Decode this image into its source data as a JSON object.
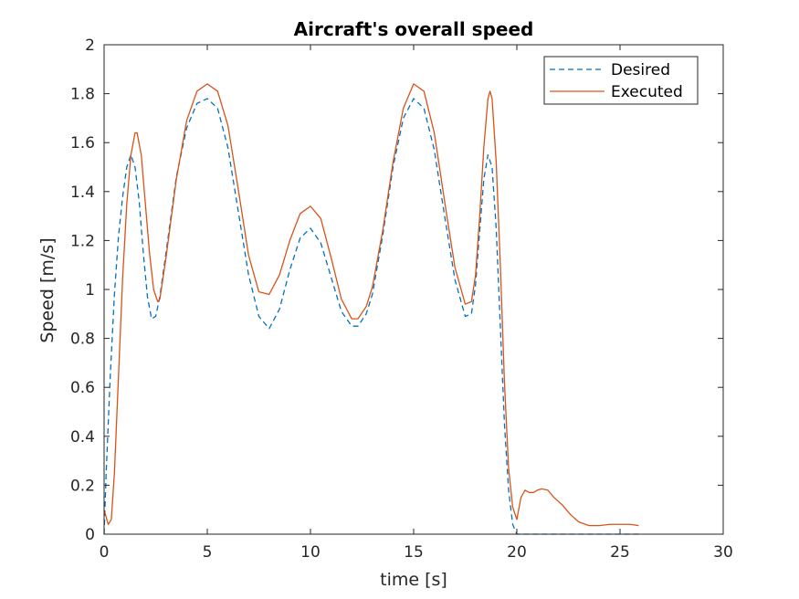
{
  "chart_data": {
    "type": "line",
    "title": "Aircraft's overall speed",
    "xlabel": "time [s]",
    "ylabel": "Speed [m/s]",
    "xlim": [
      0,
      30
    ],
    "ylim": [
      0,
      2
    ],
    "xticks": [
      "0",
      "5",
      "10",
      "15",
      "20",
      "25",
      "30"
    ],
    "yticks": [
      "0",
      "0.2",
      "0.4",
      "0.6",
      "0.8",
      "1",
      "1.2",
      "1.4",
      "1.6",
      "1.8",
      "2"
    ],
    "grid": false,
    "legend_position": "top-right",
    "series": [
      {
        "name": "Desired",
        "color": "#0072BD",
        "style": "dashed",
        "x": [
          0,
          0.1,
          0.3,
          0.5,
          0.7,
          0.9,
          1.1,
          1.3,
          1.5,
          1.7,
          1.9,
          2.1,
          2.3,
          2.5,
          2.7,
          3.0,
          3.5,
          4.0,
          4.5,
          5.0,
          5.5,
          6.0,
          6.5,
          7.0,
          7.5,
          8.0,
          8.5,
          9.0,
          9.5,
          10.0,
          10.5,
          11.0,
          11.5,
          12.0,
          12.3,
          12.7,
          13.0,
          13.5,
          14.0,
          14.5,
          15.0,
          15.5,
          16.0,
          16.5,
          17.0,
          17.5,
          17.8,
          18.0,
          18.2,
          18.4,
          18.6,
          18.8,
          19.0,
          19.2,
          19.4,
          19.6,
          19.8,
          20.0,
          20.2,
          21,
          22,
          23,
          24,
          25,
          26
        ],
        "y": [
          0.0,
          0.25,
          0.65,
          0.98,
          1.22,
          1.38,
          1.5,
          1.55,
          1.5,
          1.36,
          1.15,
          0.97,
          0.88,
          0.89,
          0.97,
          1.15,
          1.46,
          1.66,
          1.76,
          1.78,
          1.74,
          1.58,
          1.32,
          1.06,
          0.89,
          0.84,
          0.92,
          1.08,
          1.21,
          1.25,
          1.19,
          1.05,
          0.91,
          0.85,
          0.85,
          0.9,
          0.98,
          1.22,
          1.5,
          1.7,
          1.78,
          1.74,
          1.57,
          1.3,
          1.04,
          0.89,
          0.9,
          1.02,
          1.24,
          1.45,
          1.55,
          1.5,
          1.25,
          0.85,
          0.45,
          0.18,
          0.04,
          0.0,
          0.0,
          0.0,
          0.0,
          0.0,
          0.0,
          0.0,
          0.0
        ]
      },
      {
        "name": "Executed",
        "color": "#D95319",
        "style": "solid",
        "x": [
          0,
          0.1,
          0.2,
          0.35,
          0.5,
          0.7,
          0.9,
          1.1,
          1.3,
          1.5,
          1.6,
          1.8,
          2.0,
          2.2,
          2.4,
          2.6,
          2.7,
          3.0,
          3.5,
          4.0,
          4.5,
          5.0,
          5.5,
          6.0,
          6.5,
          7.0,
          7.5,
          8.0,
          8.5,
          9.0,
          9.5,
          10.0,
          10.5,
          11.0,
          11.5,
          12.0,
          12.3,
          12.7,
          13.0,
          13.5,
          14.0,
          14.5,
          15.0,
          15.5,
          16.0,
          16.5,
          17.0,
          17.5,
          17.8,
          18.0,
          18.2,
          18.4,
          18.6,
          18.7,
          18.8,
          19.0,
          19.2,
          19.4,
          19.6,
          19.8,
          20.0,
          20.2,
          20.4,
          20.6,
          20.8,
          21.0,
          21.2,
          21.5,
          21.8,
          22.2,
          22.6,
          23.0,
          23.5,
          24.0,
          24.5,
          25.0,
          25.5,
          25.9
        ],
        "y": [
          0.1,
          0.07,
          0.04,
          0.06,
          0.25,
          0.65,
          1.05,
          1.35,
          1.55,
          1.64,
          1.64,
          1.55,
          1.35,
          1.15,
          1.0,
          0.95,
          0.96,
          1.13,
          1.45,
          1.69,
          1.81,
          1.84,
          1.81,
          1.67,
          1.41,
          1.14,
          0.99,
          0.98,
          1.06,
          1.2,
          1.31,
          1.34,
          1.29,
          1.13,
          0.96,
          0.88,
          0.88,
          0.93,
          1.01,
          1.24,
          1.52,
          1.74,
          1.84,
          1.81,
          1.64,
          1.36,
          1.09,
          0.94,
          0.95,
          1.06,
          1.3,
          1.58,
          1.78,
          1.81,
          1.78,
          1.52,
          1.1,
          0.62,
          0.27,
          0.11,
          0.06,
          0.15,
          0.18,
          0.17,
          0.17,
          0.18,
          0.185,
          0.18,
          0.15,
          0.12,
          0.08,
          0.05,
          0.035,
          0.035,
          0.04,
          0.04,
          0.04,
          0.035
        ]
      }
    ]
  }
}
